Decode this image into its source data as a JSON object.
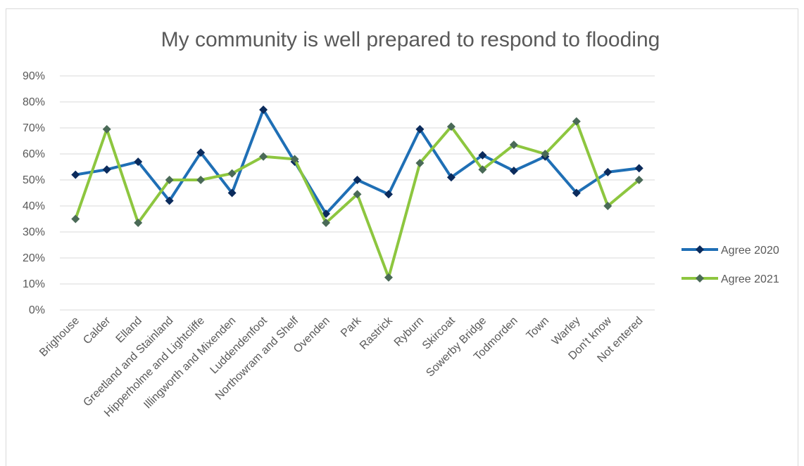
{
  "chart_data": {
    "type": "line",
    "title": "My community is well prepared to respond to flooding",
    "categories": [
      "Brighouse",
      "Calder",
      "Elland",
      "Greetland and Stainland",
      "Hipperholme and Lightcliffe",
      "Illingworth and Mixenden",
      "Luddendenfoot",
      "Northowram and Shelf",
      "Ovenden",
      "Park",
      "Rastrick",
      "Ryburn",
      "Skircoat",
      "Sowerby Bridge",
      "Todmorden",
      "Town",
      "Warley",
      "Don't know",
      "Not entered"
    ],
    "yticks": [
      "0%",
      "10%",
      "20%",
      "30%",
      "40%",
      "50%",
      "60%",
      "70%",
      "80%",
      "90%"
    ],
    "ylim": [
      0,
      90
    ],
    "grid": true,
    "legend_position": "right",
    "series": [
      {
        "name": "Agree 2020",
        "color": "#1f6fb5",
        "marker_color": "#0b2b5c",
        "values": [
          52,
          54,
          57,
          42,
          60.5,
          45,
          77,
          57,
          37,
          50,
          44.5,
          69.5,
          51,
          59.5,
          53.5,
          59,
          45,
          53,
          54.5
        ]
      },
      {
        "name": "Agree 2021",
        "color": "#8dc63f",
        "marker_color": "#4a6a57",
        "values": [
          35,
          69.5,
          33.5,
          50,
          50,
          52.5,
          59,
          58,
          33.5,
          44.5,
          12.5,
          56.5,
          70.5,
          54,
          63.5,
          60,
          72.5,
          40,
          50
        ]
      }
    ]
  }
}
